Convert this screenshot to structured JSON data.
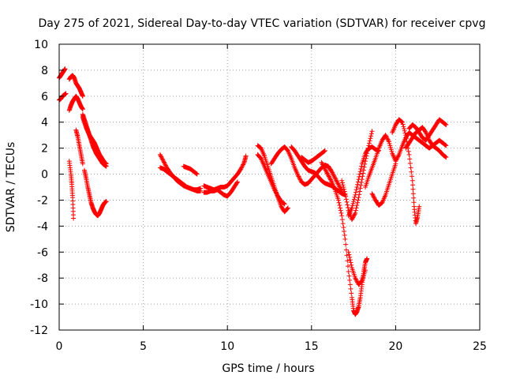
{
  "chart_data": {
    "type": "scatter",
    "title": "Day 275 of 2021, Sidereal Day-to-day VTEC variation (SDTVAR) for receiver cpvg",
    "xlabel": "GPS time / hours",
    "ylabel": "SDTVAR / TECUs",
    "xlim": [
      0,
      25
    ],
    "ylim": [
      -12,
      10
    ],
    "x_ticks": [
      0,
      5,
      10,
      15,
      20,
      25
    ],
    "y_ticks": [
      -12,
      -10,
      -8,
      -6,
      -4,
      -2,
      0,
      2,
      4,
      6,
      8,
      10
    ],
    "grid": true,
    "marker": "+",
    "color": "#ff0000",
    "tracks": [
      {
        "name": "arc-1",
        "x": [
          0.0,
          0.1,
          0.2,
          0.3,
          0.35
        ],
        "y": [
          7.4,
          7.6,
          7.8,
          8.0,
          8.1
        ]
      },
      {
        "name": "arc-2",
        "x": [
          0.0,
          0.1,
          0.2,
          0.3,
          0.4
        ],
        "y": [
          5.7,
          5.8,
          6.0,
          6.1,
          6.2
        ]
      },
      {
        "name": "arc-3",
        "x": [
          0.6,
          0.7,
          0.8,
          0.9,
          1.0,
          1.1,
          1.2,
          1.3,
          1.4
        ],
        "y": [
          7.3,
          7.5,
          7.6,
          7.4,
          7.0,
          6.8,
          6.6,
          6.3,
          6.0
        ]
      },
      {
        "name": "arc-4",
        "x": [
          0.6,
          0.7,
          0.8,
          0.9,
          1.0,
          1.1,
          1.2,
          1.3,
          1.4
        ],
        "y": [
          4.9,
          5.3,
          5.6,
          5.8,
          6.0,
          5.8,
          5.5,
          5.2,
          5.0
        ]
      },
      {
        "name": "arc-5",
        "x": [
          1.0,
          1.1,
          1.2,
          1.3,
          1.4
        ],
        "y": [
          3.4,
          2.9,
          2.2,
          1.5,
          0.8
        ]
      },
      {
        "name": "arc-6",
        "x": [
          0.6,
          0.7,
          0.75,
          0.8,
          0.85
        ],
        "y": [
          1.0,
          0.0,
          -0.8,
          -1.8,
          -3.4
        ]
      },
      {
        "name": "arc-7",
        "x": [
          1.4,
          1.5,
          1.6,
          1.7,
          1.8,
          1.9,
          2.0,
          2.1,
          2.2,
          2.3,
          2.4,
          2.5,
          2.6,
          2.7,
          2.8
        ],
        "y": [
          4.4,
          4.0,
          3.6,
          3.3,
          3.0,
          2.8,
          2.6,
          2.4,
          2.1,
          1.8,
          1.5,
          1.3,
          1.1,
          0.9,
          0.8
        ]
      },
      {
        "name": "arc-8",
        "x": [
          1.4,
          1.5,
          1.6,
          1.7,
          1.8,
          1.9,
          2.0,
          2.1,
          2.2,
          2.3,
          2.4,
          2.5,
          2.6,
          2.7,
          2.8
        ],
        "y": [
          4.6,
          4.2,
          3.8,
          3.4,
          3.0,
          2.6,
          2.2,
          1.9,
          1.6,
          1.4,
          1.2,
          1.0,
          0.8,
          0.7,
          0.6
        ]
      },
      {
        "name": "arc-9",
        "x": [
          1.5,
          1.6,
          1.7,
          1.8,
          1.9,
          2.0,
          2.1,
          2.2,
          2.3,
          2.4,
          2.5,
          2.6,
          2.7,
          2.8
        ],
        "y": [
          0.3,
          -0.3,
          -1.0,
          -1.6,
          -2.2,
          -2.6,
          -2.9,
          -3.1,
          -3.2,
          -3.0,
          -2.7,
          -2.4,
          -2.2,
          -2.1
        ]
      },
      {
        "name": "arc-10",
        "x": [
          6.0,
          6.2,
          6.4,
          6.6,
          6.8,
          7.0,
          7.2,
          7.4,
          7.6,
          7.8,
          8.0,
          8.2,
          8.3,
          8.4
        ],
        "y": [
          1.5,
          1.0,
          0.5,
          0.1,
          -0.2,
          -0.5,
          -0.7,
          -0.9,
          -1.0,
          -1.1,
          -1.2,
          -1.3,
          -1.3,
          -1.3
        ]
      },
      {
        "name": "arc-11",
        "x": [
          6.0,
          6.2,
          6.4,
          6.6,
          6.8,
          7.0,
          7.2,
          7.4,
          7.6,
          7.8,
          8.0,
          8.2,
          8.4
        ],
        "y": [
          0.5,
          0.4,
          0.2,
          0.0,
          -0.2,
          -0.4,
          -0.6,
          -0.8,
          -1.0,
          -1.1,
          -1.2,
          -1.2,
          -1.1
        ]
      },
      {
        "name": "arc-12",
        "x": [
          7.4,
          7.6,
          7.8,
          8.0,
          8.2
        ],
        "y": [
          0.6,
          0.5,
          0.4,
          0.2,
          0.0
        ]
      },
      {
        "name": "arc-13",
        "x": [
          8.6,
          8.8,
          9.0,
          9.2,
          9.4,
          9.6,
          9.8,
          10.0,
          10.2,
          10.4,
          10.6,
          10.8,
          11.0,
          11.1
        ],
        "y": [
          -0.9,
          -1.0,
          -1.1,
          -1.2,
          -1.1,
          -1.0,
          -1.0,
          -0.9,
          -0.6,
          -0.3,
          0.0,
          0.4,
          0.9,
          1.4
        ]
      },
      {
        "name": "arc-14",
        "x": [
          8.6,
          8.8,
          9.0,
          9.2,
          9.4,
          9.6,
          9.8,
          10.0,
          10.2,
          10.4,
          10.6
        ],
        "y": [
          -1.4,
          -1.4,
          -1.3,
          -1.3,
          -1.2,
          -1.4,
          -1.6,
          -1.7,
          -1.4,
          -1.0,
          -0.6
        ]
      },
      {
        "name": "arc-15",
        "x": [
          11.8,
          12.0,
          12.2,
          12.4,
          12.6,
          12.8,
          13.0,
          13.2,
          13.4,
          13.6
        ],
        "y": [
          2.2,
          2.0,
          1.4,
          0.6,
          -0.2,
          -1.0,
          -1.8,
          -2.5,
          -2.9,
          -2.6
        ]
      },
      {
        "name": "arc-16",
        "x": [
          11.8,
          12.0,
          12.2,
          12.4,
          12.6,
          12.8,
          13.0,
          13.2,
          13.4
        ],
        "y": [
          1.5,
          1.2,
          0.6,
          0.0,
          -0.6,
          -1.2,
          -1.7,
          -2.1,
          -2.3
        ]
      },
      {
        "name": "arc-17",
        "x": [
          12.6,
          12.8,
          13.0,
          13.2,
          13.4,
          13.6,
          13.8,
          14.0,
          14.2,
          14.4,
          14.6,
          14.8,
          15.0,
          15.2,
          15.4,
          15.6,
          15.8,
          16.0,
          16.2,
          16.4,
          16.6,
          16.8
        ],
        "y": [
          0.8,
          1.2,
          1.6,
          1.9,
          2.1,
          1.8,
          1.2,
          0.5,
          -0.1,
          -0.6,
          -0.8,
          -0.7,
          -0.4,
          -0.1,
          0.2,
          0.5,
          0.7,
          0.6,
          0.2,
          -0.3,
          -0.8,
          -1.3
        ]
      },
      {
        "name": "arc-18",
        "x": [
          13.8,
          14.0,
          14.2,
          14.4,
          14.6,
          14.8,
          15.0,
          15.2,
          15.4,
          15.6,
          15.8,
          16.0,
          16.2,
          16.4,
          16.6,
          16.8,
          17.0
        ],
        "y": [
          2.1,
          1.8,
          1.4,
          1.0,
          0.6,
          0.3,
          0.2,
          0.1,
          -0.2,
          -0.5,
          -0.7,
          -0.8,
          -0.9,
          -1.1,
          -1.3,
          -1.5,
          -1.6
        ]
      },
      {
        "name": "arc-19",
        "x": [
          14.4,
          14.6,
          14.8,
          15.0,
          15.2,
          15.4,
          15.6,
          15.8
        ],
        "y": [
          1.3,
          1.1,
          0.9,
          1.0,
          1.2,
          1.4,
          1.6,
          1.8
        ]
      },
      {
        "name": "arc-20",
        "x": [
          15.6,
          15.8,
          16.0,
          16.2,
          16.4,
          16.6,
          16.8,
          17.0,
          17.2,
          17.4,
          17.5,
          17.6,
          17.7,
          17.8,
          17.9,
          18.0,
          18.1,
          18.2,
          18.3
        ],
        "y": [
          0.9,
          0.4,
          -0.1,
          -0.6,
          -1.2,
          -2.0,
          -3.2,
          -5.0,
          -7.5,
          -9.5,
          -10.5,
          -10.8,
          -10.6,
          -10.2,
          -9.5,
          -8.5,
          -7.5,
          -6.8,
          -6.5
        ]
      },
      {
        "name": "arc-21",
        "x": [
          17.2,
          17.4,
          17.6,
          17.8,
          18.0,
          18.2
        ],
        "y": [
          -6.0,
          -7.2,
          -8.0,
          -8.5,
          -8.2,
          -7.4
        ]
      },
      {
        "name": "arc-22",
        "x": [
          16.8,
          17.0,
          17.2,
          17.4,
          17.6,
          17.8,
          18.0,
          18.2,
          18.4,
          18.6
        ],
        "y": [
          -0.5,
          -1.5,
          -2.8,
          -3.5,
          -3.0,
          -1.8,
          -0.4,
          1.0,
          2.2,
          3.3
        ]
      },
      {
        "name": "arc-23",
        "x": [
          17.2,
          17.4,
          17.6,
          17.8,
          18.0,
          18.2,
          18.4,
          18.6,
          18.8,
          19.0
        ],
        "y": [
          -3.2,
          -2.6,
          -1.6,
          -0.4,
          0.8,
          1.6,
          2.0,
          2.1,
          1.9,
          1.8
        ]
      },
      {
        "name": "arc-24",
        "x": [
          18.2,
          18.4,
          18.6,
          18.8,
          19.0,
          19.2,
          19.4,
          19.6,
          19.8,
          20.0,
          20.2,
          20.4,
          20.6,
          20.8,
          21.0,
          21.2,
          21.4,
          21.6,
          21.8,
          22.0,
          22.2,
          22.4,
          22.6,
          22.8,
          23.0
        ],
        "y": [
          -1.0,
          -0.2,
          0.5,
          1.2,
          2.0,
          2.6,
          3.0,
          2.5,
          1.6,
          1.0,
          1.5,
          2.2,
          2.8,
          3.2,
          3.0,
          2.8,
          2.6,
          2.4,
          2.2,
          2.0,
          2.2,
          2.4,
          2.6,
          2.4,
          2.2
        ]
      },
      {
        "name": "arc-25",
        "x": [
          18.6,
          18.8,
          19.0,
          19.2,
          19.4,
          19.6,
          19.8,
          20.0
        ],
        "y": [
          -1.5,
          -2.0,
          -2.4,
          -2.2,
          -1.6,
          -0.8,
          0.0,
          0.8
        ]
      },
      {
        "name": "arc-26",
        "x": [
          19.8,
          20.0,
          20.2,
          20.4,
          20.6,
          20.8,
          21.0,
          21.1,
          21.2,
          21.3,
          21.4
        ],
        "y": [
          3.2,
          3.8,
          4.2,
          4.0,
          3.0,
          1.5,
          -0.5,
          -2.5,
          -3.8,
          -3.3,
          -2.5
        ]
      },
      {
        "name": "arc-27",
        "x": [
          20.8,
          21.0,
          21.2,
          21.4,
          21.6,
          21.8,
          22.0,
          22.2,
          22.4,
          22.6,
          22.8,
          23.0
        ],
        "y": [
          3.5,
          3.8,
          3.6,
          3.2,
          2.8,
          2.6,
          3.0,
          3.4,
          3.8,
          4.2,
          4.0,
          3.8
        ]
      },
      {
        "name": "arc-28",
        "x": [
          20.6,
          20.8,
          21.0,
          21.2,
          21.4,
          21.6,
          21.8,
          22.0,
          22.2,
          22.4,
          22.6,
          22.8,
          23.0
        ],
        "y": [
          2.0,
          2.4,
          2.8,
          3.2,
          3.4,
          3.6,
          3.2,
          2.6,
          2.2,
          2.0,
          1.8,
          1.5,
          1.3
        ]
      }
    ]
  }
}
